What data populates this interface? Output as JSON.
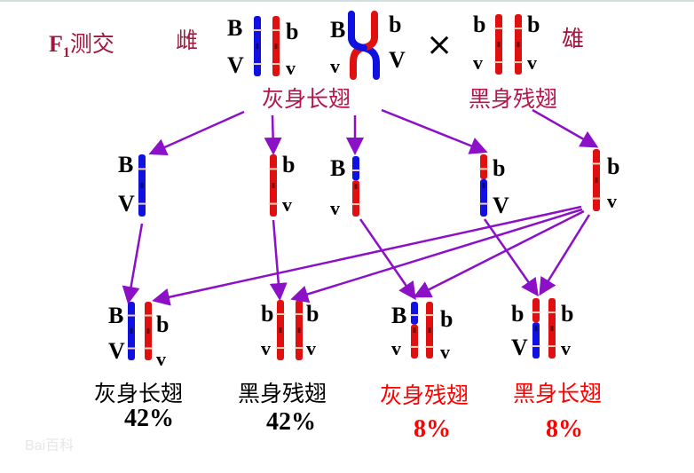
{
  "title": {
    "f": "F",
    "sub": "1",
    "text": "测交"
  },
  "female_label": "雌",
  "male_label": "雄",
  "cross_symbol": "×",
  "parents": {
    "female_phenotype": "灰身长翅",
    "male_phenotype": "黑身残翅"
  },
  "alleles": {
    "B": "B",
    "b": "b",
    "V": "V",
    "v": "v"
  },
  "offspring": [
    {
      "phenotype": "灰身长翅",
      "percent": "42%"
    },
    {
      "phenotype": "黑身残翅",
      "percent": "42%"
    },
    {
      "phenotype": "灰身残翅",
      "percent": "8%"
    },
    {
      "phenotype": "黑身长翅",
      "percent": "8%"
    }
  ],
  "watermark": "Bai百科",
  "colors": {
    "title": "#a0163c",
    "parent_label": "#b5174a",
    "arrow": "#8b10c8",
    "chromosome_dominant": "#1010e0",
    "chromosome_recessive": "#e01010",
    "recombinant_text": "#ff0000",
    "parental_text": "#000000"
  }
}
